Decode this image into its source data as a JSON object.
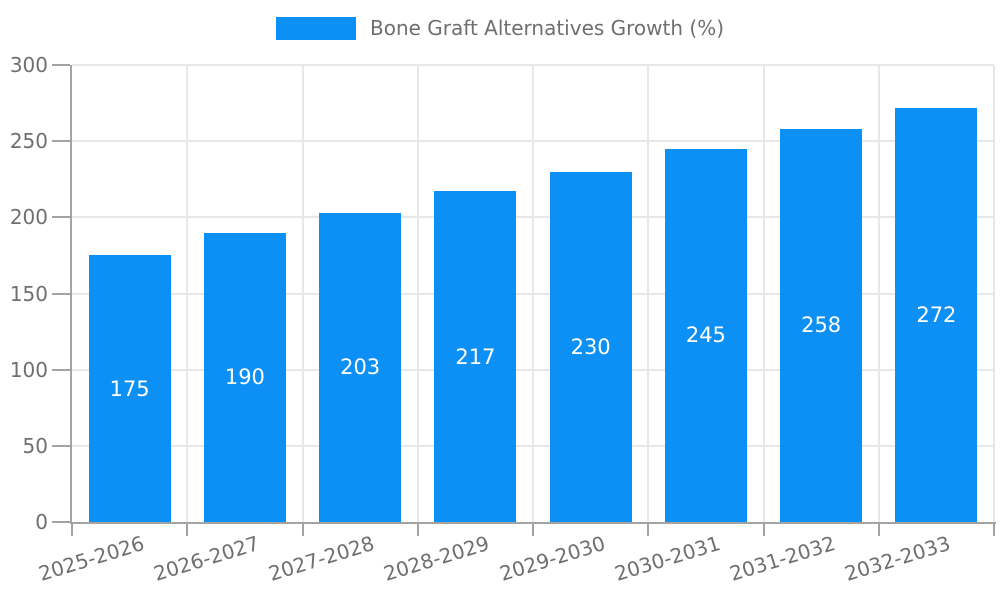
{
  "chart_data": {
    "type": "bar",
    "title": "",
    "legend_label": "Bone Graft Alternatives Growth (%)",
    "legend_position": "top",
    "categories": [
      "2025-2026",
      "2026-2027",
      "2027-2028",
      "2028-2029",
      "2029-2030",
      "2030-2031",
      "2031-2032",
      "2032-2033"
    ],
    "values": [
      175,
      190,
      203,
      217,
      230,
      245,
      258,
      272
    ],
    "xlabel": "",
    "ylabel": "",
    "ylim": [
      0,
      300
    ],
    "yticks": [
      0,
      50,
      100,
      150,
      200,
      250,
      300
    ],
    "grid": true,
    "x_label_rotation_deg": -17,
    "colors": {
      "bar": "#0d90f5",
      "value_label": "#ffffff",
      "axis": "#a3a3a3",
      "grid": "#e7e7e7",
      "tick_text": "#6f6f6f"
    }
  }
}
